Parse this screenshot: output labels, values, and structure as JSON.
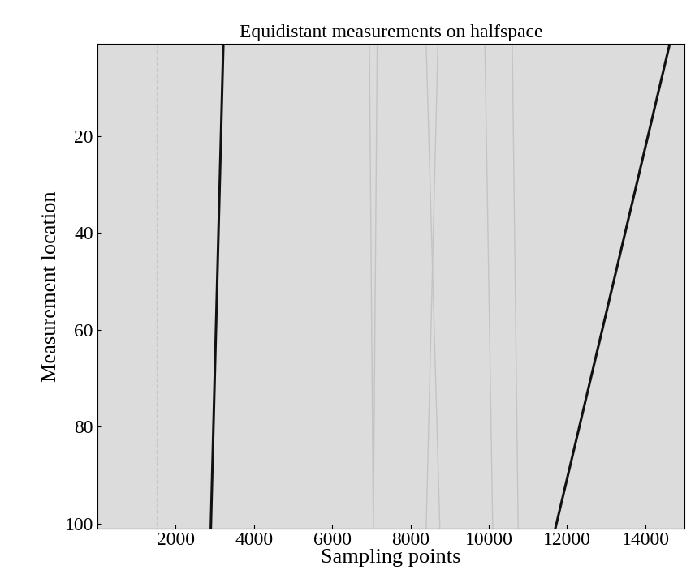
{
  "chart_data": {
    "type": "line",
    "title": "Equidistant measurements on halfspace",
    "x_label": "Sampling points",
    "y_label": "Measurement location",
    "xlim": [
      1,
      15000
    ],
    "ylim": [
      101,
      1
    ],
    "xticks": [
      2000,
      4000,
      6000,
      8000,
      10000,
      12000,
      14000
    ],
    "yticks": [
      20,
      40,
      60,
      80,
      100
    ],
    "grid": false,
    "series": [
      {
        "color": "#c8c8c8",
        "line_style": "dashed",
        "x": [
          1520,
          1520
        ],
        "values": [
          1,
          101
        ]
      },
      {
        "color": "#111111",
        "line_style": "solid",
        "x": [
          3220,
          2900
        ],
        "values": [
          1,
          101
        ]
      },
      {
        "color": "#c4c4c4",
        "line_style": "solid",
        "x": [
          6950,
          7050
        ],
        "values": [
          1,
          101
        ]
      },
      {
        "color": "#c4c4c4",
        "line_style": "solid",
        "x": [
          7150,
          7050
        ],
        "values": [
          1,
          101
        ]
      },
      {
        "color": "#c4c4c4",
        "line_style": "solid",
        "x": [
          8400,
          8750
        ],
        "values": [
          1,
          101
        ]
      },
      {
        "color": "#c4c4c4",
        "line_style": "solid",
        "x": [
          8700,
          8400
        ],
        "values": [
          1,
          101
        ]
      },
      {
        "color": "#c4c4c4",
        "line_style": "solid",
        "x": [
          9900,
          10100
        ],
        "values": [
          1,
          101
        ]
      },
      {
        "color": "#c4c4c4",
        "line_style": "solid",
        "x": [
          10600,
          10750
        ],
        "values": [
          1,
          101
        ]
      },
      {
        "color": "#111111",
        "line_style": "solid",
        "x": [
          14620,
          11700
        ],
        "values": [
          1,
          101
        ]
      }
    ]
  }
}
